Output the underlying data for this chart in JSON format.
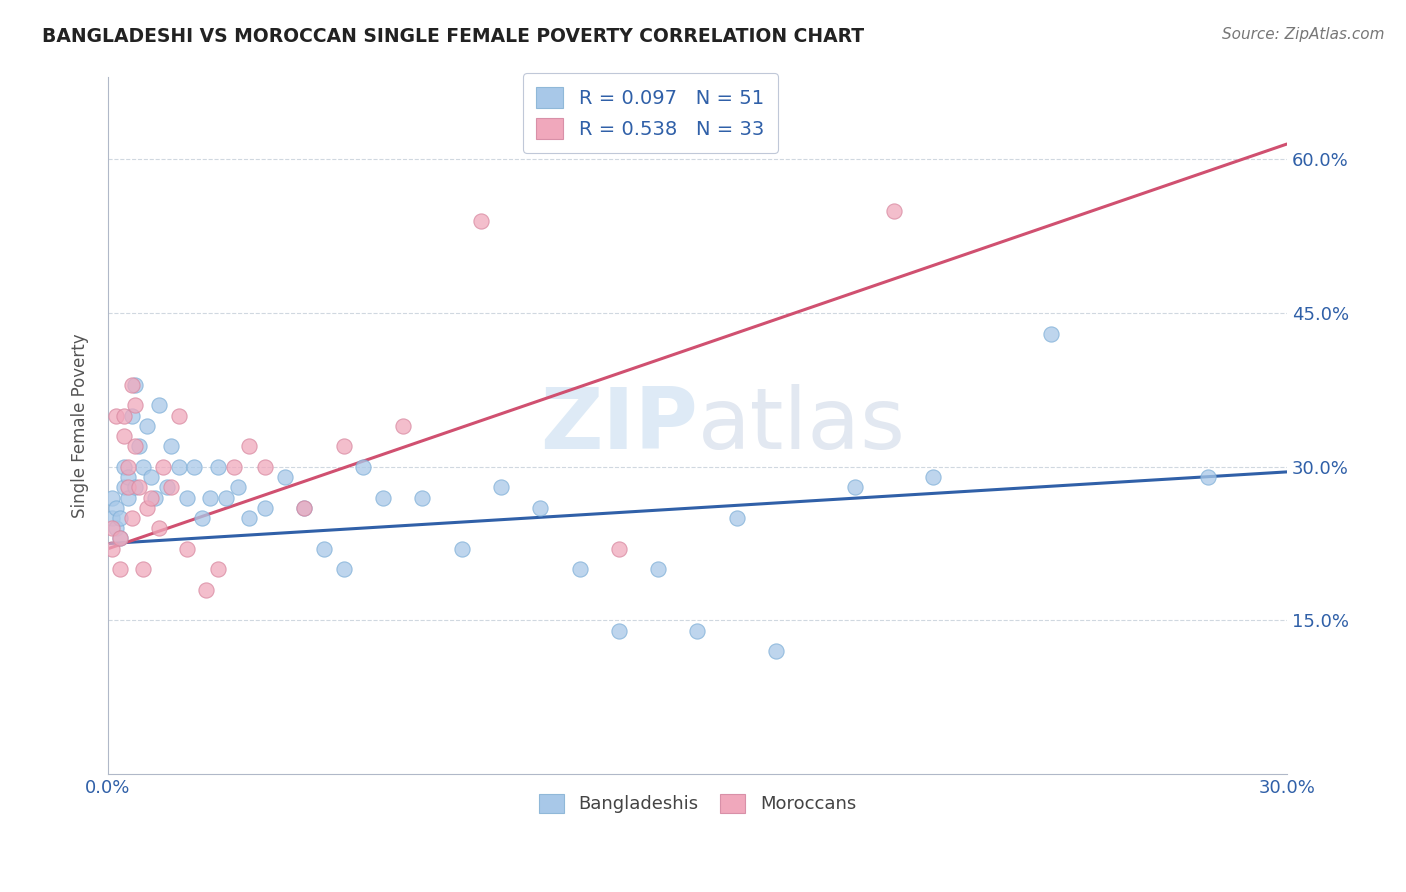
{
  "title": "BANGLADESHI VS MOROCCAN SINGLE FEMALE POVERTY CORRELATION CHART",
  "source": "Source: ZipAtlas.com",
  "ylabel": "Single Female Poverty",
  "legend_entries": [
    {
      "label": "Bangladeshis",
      "color": "#a8c8e8",
      "R": 0.097,
      "N": 51
    },
    {
      "label": "Moroccans",
      "color": "#f0a8bc",
      "R": 0.538,
      "N": 33
    }
  ],
  "bangladeshi_x": [
    0.001,
    0.001,
    0.002,
    0.002,
    0.003,
    0.003,
    0.004,
    0.004,
    0.005,
    0.005,
    0.006,
    0.007,
    0.007,
    0.008,
    0.009,
    0.01,
    0.011,
    0.012,
    0.013,
    0.015,
    0.016,
    0.018,
    0.02,
    0.022,
    0.024,
    0.026,
    0.028,
    0.03,
    0.033,
    0.036,
    0.04,
    0.045,
    0.05,
    0.055,
    0.06,
    0.065,
    0.07,
    0.08,
    0.09,
    0.1,
    0.11,
    0.12,
    0.13,
    0.14,
    0.15,
    0.16,
    0.17,
    0.19,
    0.21,
    0.24,
    0.28
  ],
  "bangladeshi_y": [
    0.25,
    0.27,
    0.24,
    0.26,
    0.23,
    0.25,
    0.28,
    0.3,
    0.27,
    0.29,
    0.35,
    0.38,
    0.28,
    0.32,
    0.3,
    0.34,
    0.29,
    0.27,
    0.36,
    0.28,
    0.32,
    0.3,
    0.27,
    0.3,
    0.25,
    0.27,
    0.3,
    0.27,
    0.28,
    0.25,
    0.26,
    0.29,
    0.26,
    0.22,
    0.2,
    0.3,
    0.27,
    0.27,
    0.22,
    0.28,
    0.26,
    0.2,
    0.14,
    0.2,
    0.14,
    0.25,
    0.12,
    0.28,
    0.29,
    0.43,
    0.29
  ],
  "moroccan_x": [
    0.001,
    0.001,
    0.002,
    0.003,
    0.003,
    0.004,
    0.004,
    0.005,
    0.005,
    0.006,
    0.006,
    0.007,
    0.007,
    0.008,
    0.009,
    0.01,
    0.011,
    0.013,
    0.014,
    0.016,
    0.018,
    0.02,
    0.025,
    0.028,
    0.032,
    0.036,
    0.04,
    0.05,
    0.06,
    0.075,
    0.095,
    0.13,
    0.2
  ],
  "moroccan_y": [
    0.22,
    0.24,
    0.35,
    0.2,
    0.23,
    0.33,
    0.35,
    0.28,
    0.3,
    0.25,
    0.38,
    0.36,
    0.32,
    0.28,
    0.2,
    0.26,
    0.27,
    0.24,
    0.3,
    0.28,
    0.35,
    0.22,
    0.18,
    0.2,
    0.3,
    0.32,
    0.3,
    0.26,
    0.32,
    0.34,
    0.54,
    0.22,
    0.55
  ],
  "bangladeshi_color": "#a8c8e8",
  "moroccan_color": "#f0a8bc",
  "bangladeshi_line_color": "#3060a8",
  "moroccan_line_color": "#d05070",
  "xlim": [
    0.0,
    0.3
  ],
  "ylim": [
    0.0,
    0.68
  ],
  "yticks": [
    0.15,
    0.3,
    0.45,
    0.6
  ],
  "ytick_labels": [
    "15.0%",
    "30.0%",
    "45.0%",
    "60.0%"
  ],
  "bd_line_x0": 0.0,
  "bd_line_y0": 0.225,
  "bd_line_x1": 0.3,
  "bd_line_y1": 0.295,
  "mo_line_x0": 0.0,
  "mo_line_y0": 0.22,
  "mo_line_x1": 0.3,
  "mo_line_y1": 0.615,
  "watermark_zip": "ZIP",
  "watermark_atlas": "atlas",
  "background_color": "#ffffff",
  "grid_color": "#d0d8e0"
}
